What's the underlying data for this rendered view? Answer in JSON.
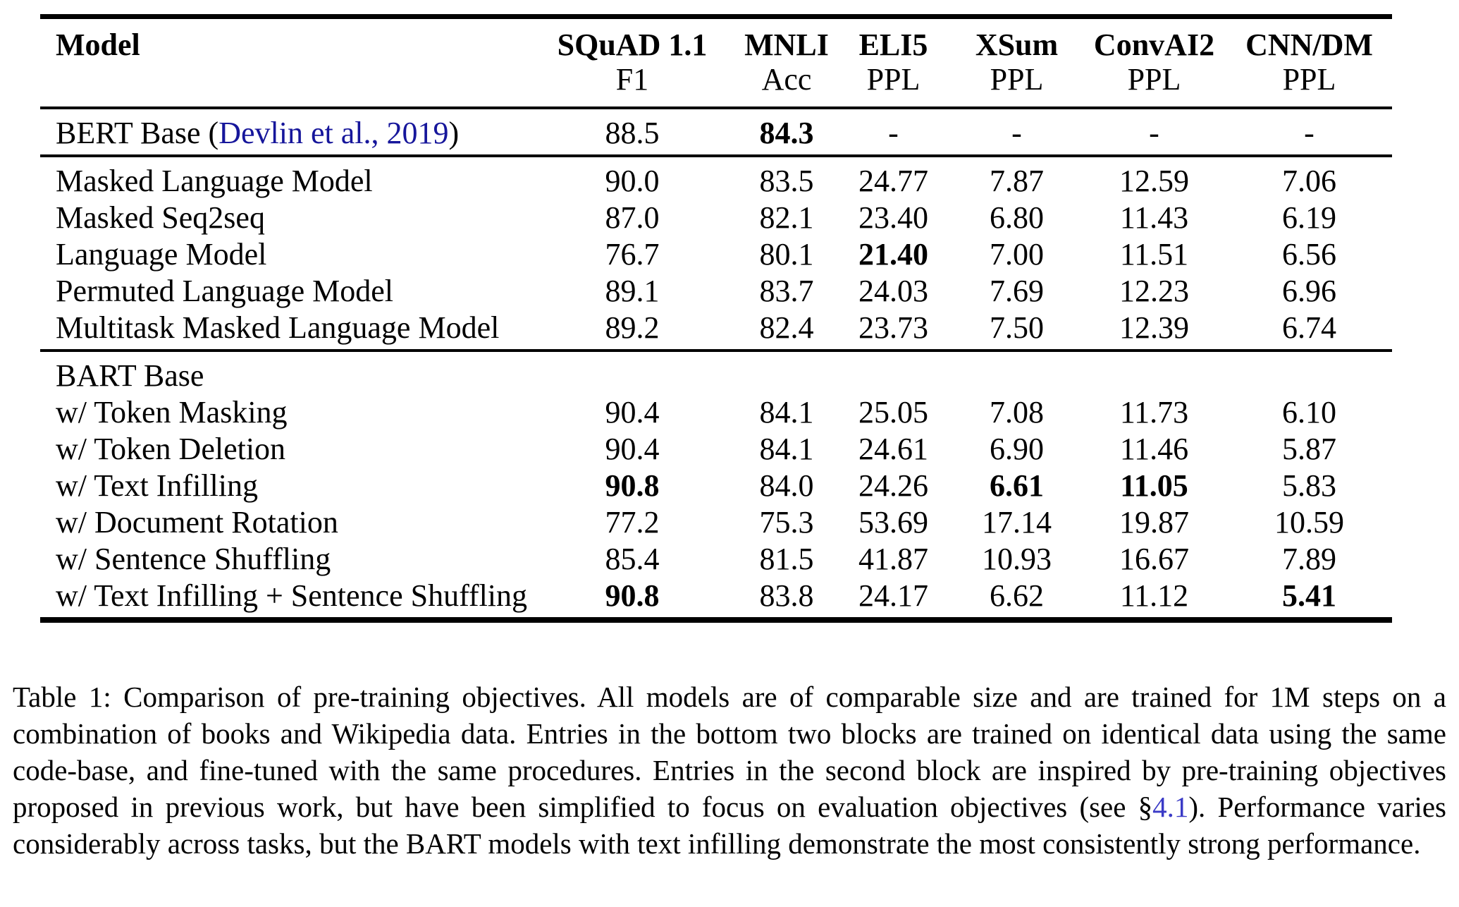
{
  "colors": {
    "rule": "#000000",
    "text": "#000000",
    "citation-link": "#16169b",
    "section-link": "#3a3ac6"
  },
  "table": {
    "columns": [
      {
        "id": "model",
        "title": "Model",
        "sub": ""
      },
      {
        "id": "squad",
        "title": "SQuAD 1.1",
        "sub": "F1"
      },
      {
        "id": "mnli",
        "title": "MNLI",
        "sub": "Acc"
      },
      {
        "id": "eli5",
        "title": "ELI5",
        "sub": "PPL"
      },
      {
        "id": "xsum",
        "title": "XSum",
        "sub": "PPL"
      },
      {
        "id": "convai2",
        "title": "ConvAI2",
        "sub": "PPL"
      },
      {
        "id": "cnndm",
        "title": "CNN/DM",
        "sub": "PPL"
      }
    ],
    "blocks": [
      {
        "rows": [
          {
            "label_parts": [
              {
                "t": "BERT Base ("
              },
              {
                "t": "Devlin et al., 2019",
                "link": "citation"
              },
              {
                "t": ")"
              }
            ],
            "cells": [
              {
                "v": "88.5"
              },
              {
                "v": "84.3",
                "b": true
              },
              {
                "v": "-"
              },
              {
                "v": "-"
              },
              {
                "v": "-"
              },
              {
                "v": "-"
              }
            ]
          }
        ]
      },
      {
        "rows": [
          {
            "label": "Masked Language Model",
            "cells": [
              {
                "v": "90.0"
              },
              {
                "v": "83.5"
              },
              {
                "v": "24.77"
              },
              {
                "v": "7.87"
              },
              {
                "v": "12.59"
              },
              {
                "v": "7.06"
              }
            ]
          },
          {
            "label": "Masked Seq2seq",
            "cells": [
              {
                "v": "87.0"
              },
              {
                "v": "82.1"
              },
              {
                "v": "23.40"
              },
              {
                "v": "6.80"
              },
              {
                "v": "11.43"
              },
              {
                "v": "6.19"
              }
            ]
          },
          {
            "label": "Language Model",
            "cells": [
              {
                "v": "76.7"
              },
              {
                "v": "80.1"
              },
              {
                "v": "21.40",
                "b": true
              },
              {
                "v": "7.00"
              },
              {
                "v": "11.51"
              },
              {
                "v": "6.56"
              }
            ]
          },
          {
            "label": "Permuted Language Model",
            "cells": [
              {
                "v": "89.1"
              },
              {
                "v": "83.7"
              },
              {
                "v": "24.03"
              },
              {
                "v": "7.69"
              },
              {
                "v": "12.23"
              },
              {
                "v": "6.96"
              }
            ]
          },
          {
            "label": "Multitask Masked Language Model",
            "cells": [
              {
                "v": "89.2"
              },
              {
                "v": "82.4"
              },
              {
                "v": "23.73"
              },
              {
                "v": "7.50"
              },
              {
                "v": "12.39"
              },
              {
                "v": "6.74"
              }
            ]
          }
        ]
      },
      {
        "rows": [
          {
            "label": "BART Base",
            "cells": [
              {
                "v": ""
              },
              {
                "v": ""
              },
              {
                "v": ""
              },
              {
                "v": ""
              },
              {
                "v": ""
              },
              {
                "v": ""
              }
            ]
          },
          {
            "label": "w/ Token Masking",
            "cells": [
              {
                "v": "90.4"
              },
              {
                "v": "84.1"
              },
              {
                "v": "25.05"
              },
              {
                "v": "7.08"
              },
              {
                "v": "11.73"
              },
              {
                "v": "6.10"
              }
            ]
          },
          {
            "label": "w/ Token Deletion",
            "cells": [
              {
                "v": "90.4"
              },
              {
                "v": "84.1"
              },
              {
                "v": "24.61"
              },
              {
                "v": "6.90"
              },
              {
                "v": "11.46"
              },
              {
                "v": "5.87"
              }
            ]
          },
          {
            "label": "w/ Text Infilling",
            "cells": [
              {
                "v": "90.8",
                "b": true
              },
              {
                "v": "84.0"
              },
              {
                "v": "24.26"
              },
              {
                "v": "6.61",
                "b": true
              },
              {
                "v": "11.05",
                "b": true
              },
              {
                "v": "5.83"
              }
            ]
          },
          {
            "label": "w/ Document Rotation",
            "cells": [
              {
                "v": "77.2"
              },
              {
                "v": "75.3"
              },
              {
                "v": "53.69"
              },
              {
                "v": "17.14"
              },
              {
                "v": "19.87"
              },
              {
                "v": "10.59"
              }
            ]
          },
          {
            "label": "w/ Sentence Shuffling",
            "cells": [
              {
                "v": "85.4"
              },
              {
                "v": "81.5"
              },
              {
                "v": "41.87"
              },
              {
                "v": "10.93"
              },
              {
                "v": "16.67"
              },
              {
                "v": "7.89"
              }
            ]
          },
          {
            "label": "w/ Text Infilling + Sentence Shuffling",
            "cells": [
              {
                "v": "90.8",
                "b": true
              },
              {
                "v": "83.8"
              },
              {
                "v": "24.17"
              },
              {
                "v": "6.62"
              },
              {
                "v": "11.12"
              },
              {
                "v": "5.41",
                "b": true
              }
            ]
          }
        ]
      }
    ]
  },
  "caption": {
    "parts": [
      {
        "t": "Table 1:  Comparison of pre-training objectives.  All models are of comparable size and are trained for 1M steps on a combination of books and Wikipedia data.  Entries in the bottom two blocks are trained on identical data using the same code-base, and fine-tuned with the same procedures.  Entries in the second block are inspired by pre-training objectives proposed in previous work, but have been simplified to focus on evaluation objectives (see §"
      },
      {
        "t": "4.1",
        "link": "section"
      },
      {
        "t": ").  Performance varies considerably across tasks, but the BART models with text infilling demonstrate the most consistently strong performance."
      }
    ]
  }
}
